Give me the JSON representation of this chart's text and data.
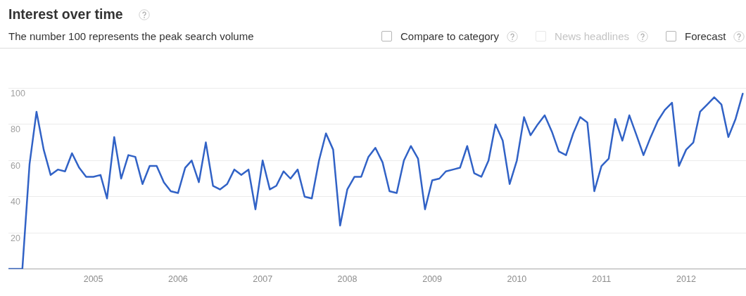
{
  "chart_data": {
    "type": "line",
    "title": "Interest over time",
    "subtitle": "The number 100 represents the peak search volume",
    "annotations": [
      "Compare to category",
      "News headlines",
      "Forecast"
    ],
    "x": [
      "2004-01",
      "2004-02",
      "2004-03",
      "2004-04",
      "2004-05",
      "2004-06",
      "2004-07",
      "2004-08",
      "2004-09",
      "2004-10",
      "2004-11",
      "2004-12",
      "2005-01",
      "2005-02",
      "2005-03",
      "2005-04",
      "2005-05",
      "2005-06",
      "2005-07",
      "2005-08",
      "2005-09",
      "2005-10",
      "2005-11",
      "2005-12",
      "2006-01",
      "2006-02",
      "2006-03",
      "2006-04",
      "2006-05",
      "2006-06",
      "2006-07",
      "2006-08",
      "2006-09",
      "2006-10",
      "2006-11",
      "2006-12",
      "2007-01",
      "2007-02",
      "2007-03",
      "2007-04",
      "2007-05",
      "2007-06",
      "2007-07",
      "2007-08",
      "2007-09",
      "2007-10",
      "2007-11",
      "2007-12",
      "2008-01",
      "2008-02",
      "2008-03",
      "2008-04",
      "2008-05",
      "2008-06",
      "2008-07",
      "2008-08",
      "2008-09",
      "2008-10",
      "2008-11",
      "2008-12",
      "2009-01",
      "2009-02",
      "2009-03",
      "2009-04",
      "2009-05",
      "2009-06",
      "2009-07",
      "2009-08",
      "2009-09",
      "2009-10",
      "2009-11",
      "2009-12",
      "2010-01",
      "2010-02",
      "2010-03",
      "2010-04",
      "2010-05",
      "2010-06",
      "2010-07",
      "2010-08",
      "2010-09",
      "2010-10",
      "2010-11",
      "2010-12",
      "2011-01",
      "2011-02",
      "2011-03",
      "2011-04",
      "2011-05",
      "2011-06",
      "2011-07",
      "2011-08",
      "2011-09",
      "2011-10",
      "2011-11",
      "2011-12",
      "2012-01",
      "2012-02",
      "2012-03",
      "2012-04",
      "2012-05",
      "2012-06",
      "2012-07",
      "2012-08",
      "2012-09"
    ],
    "values": [
      0,
      0,
      0,
      58,
      87,
      66,
      52,
      55,
      54,
      64,
      56,
      51,
      51,
      52,
      39,
      73,
      50,
      63,
      62,
      47,
      57,
      57,
      48,
      43,
      42,
      56,
      60,
      48,
      70,
      46,
      44,
      47,
      55,
      52,
      55,
      33,
      60,
      44,
      46,
      54,
      50,
      55,
      40,
      39,
      60,
      75,
      66,
      24,
      44,
      51,
      51,
      62,
      67,
      59,
      43,
      42,
      60,
      68,
      61,
      33,
      49,
      50,
      54,
      55,
      56,
      68,
      53,
      51,
      60,
      80,
      71,
      47,
      60,
      84,
      74,
      80,
      85,
      76,
      65,
      63,
      75,
      84,
      81,
      43,
      57,
      61,
      83,
      71,
      85,
      74,
      63,
      73,
      82,
      88,
      92,
      57,
      66,
      70,
      87,
      91,
      95,
      91,
      73,
      83,
      97
    ],
    "color": "#3162c6",
    "xlim": [
      "2004-01",
      "2012-09-15"
    ],
    "xticks": [
      "2005",
      "2006",
      "2007",
      "2008",
      "2009",
      "2010",
      "2011",
      "2012"
    ],
    "ylim": [
      0,
      100
    ],
    "yticks": [
      20,
      40,
      60,
      80,
      100
    ],
    "grid": "y",
    "marker": "none",
    "line_style": "solid"
  }
}
